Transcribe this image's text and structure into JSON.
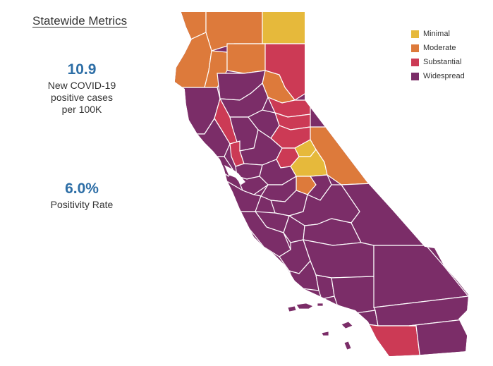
{
  "header": {
    "title": "Statewide Metrics"
  },
  "metrics": [
    {
      "value": "10.9",
      "label_lines": [
        "New COVID-19",
        "positive cases",
        "per 100K"
      ]
    },
    {
      "value": "6.0%",
      "label_lines": [
        "Positivity Rate"
      ]
    }
  ],
  "legend": [
    {
      "label": "Minimal",
      "color": "#e6b93b"
    },
    {
      "label": "Moderate",
      "color": "#dd7a3b"
    },
    {
      "label": "Substantial",
      "color": "#cc3a55"
    },
    {
      "label": "Widespread",
      "color": "#7b2d68"
    }
  ],
  "colors": {
    "minimal": "#e6b93b",
    "moderate": "#dd7a3b",
    "substantial": "#cc3a55",
    "widespread": "#7b2d68",
    "border": "#ffffff",
    "metric_value": "#2d6ea6"
  }
}
